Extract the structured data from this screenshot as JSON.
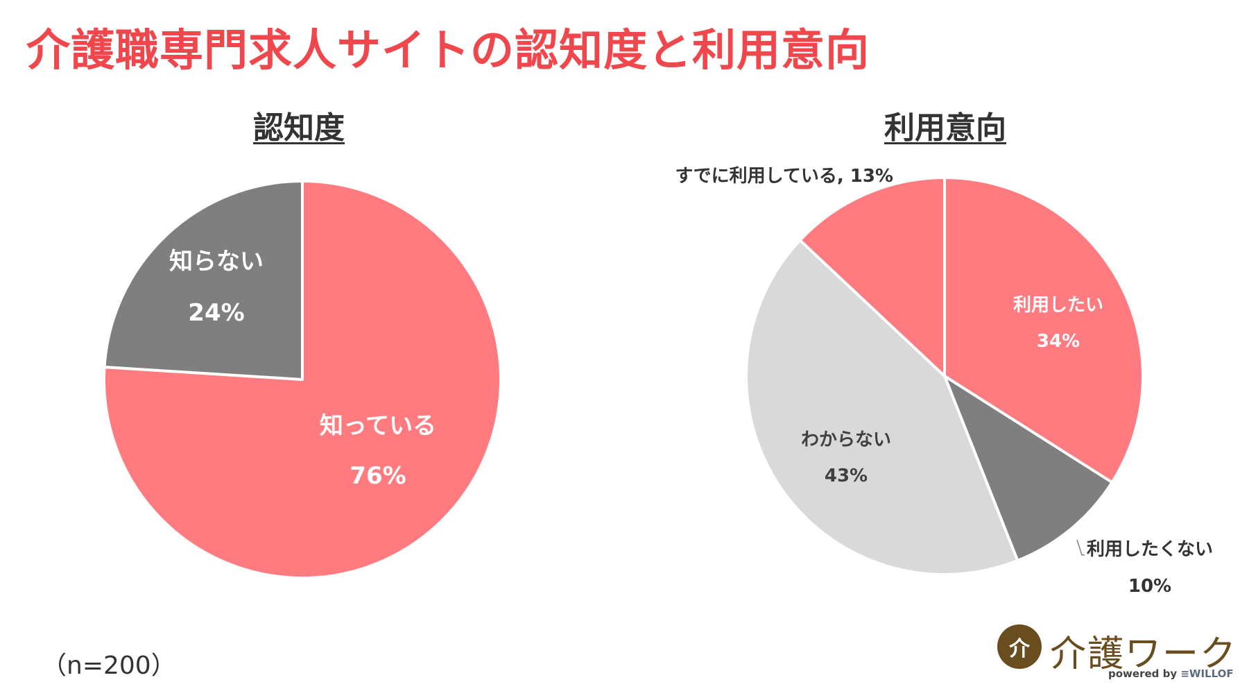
{
  "title": "介護職専門求人サイトの認知度と利用意向",
  "sample_note": "（n=200）",
  "logo": {
    "mark": "介",
    "text": "介護ワーク",
    "powered_by": "powered by",
    "brand": "≡WILLOF"
  },
  "colors": {
    "title": "#f0474d",
    "pink": "#ff7b7f",
    "dark_gray": "#7f7f7f",
    "light_gray": "#d9d9d9",
    "logo": "#6a4d1f"
  },
  "chart_data": [
    {
      "type": "pie",
      "title": "認知度",
      "slices": [
        {
          "label": "知っている",
          "value": 76,
          "value_label": "76%",
          "color": "#ff7b7f"
        },
        {
          "label": "知らない",
          "value": 24,
          "value_label": "24%",
          "color": "#7f7f7f"
        }
      ]
    },
    {
      "type": "pie",
      "title": "利用意向",
      "slices": [
        {
          "label": "利用したい",
          "value": 34,
          "value_label": "34%",
          "color": "#ff7b7f"
        },
        {
          "label": "利用したくない",
          "value": 10,
          "value_label": "10%",
          "color": "#7f7f7f"
        },
        {
          "label": "わからない",
          "value": 43,
          "value_label": "43%",
          "color": "#d9d9d9"
        },
        {
          "label": "すでに利用している",
          "value": 13,
          "value_label": "13%",
          "color": "#ff7b7f",
          "combined_label": "すでに利用している, 13%"
        }
      ]
    }
  ]
}
